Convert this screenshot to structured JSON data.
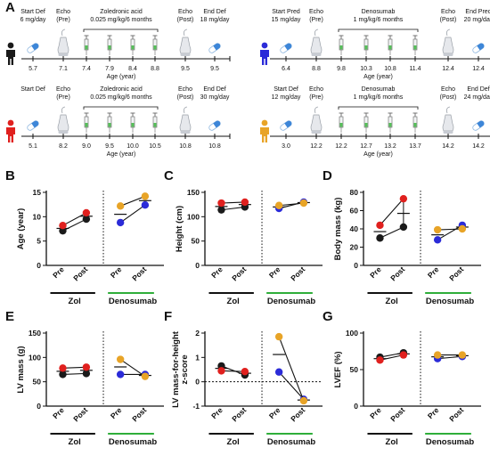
{
  "timelines": {
    "age_axis_label": "Age (year)",
    "patients": [
      {
        "color": "#1a1a1a",
        "events": [
          {
            "label": "Start Def",
            "sub": "6 mg/day",
            "age": "5.7",
            "icon": "pill-icon"
          },
          {
            "label": "Echo",
            "sub": "(Pre)",
            "age": "7.1",
            "icon": "echo-probe-icon"
          },
          {
            "label": "",
            "sub": "",
            "age": "7.4",
            "icon": "syringe-icon"
          },
          {
            "label": "",
            "sub": "",
            "age": "7.9",
            "icon": "syringe-icon"
          },
          {
            "label": "",
            "sub": "",
            "age": "8.4",
            "icon": "syringe-icon"
          },
          {
            "label": "",
            "sub": "",
            "age": "8.8",
            "icon": "syringe-icon"
          },
          {
            "label": "Echo",
            "sub": "(Post)",
            "age": "9.5",
            "icon": "echo-probe-icon"
          },
          {
            "label": "End Def",
            "sub": "18 mg/day",
            "age": "9.5",
            "icon": "pill-icon"
          }
        ],
        "treatment": "Zoledronic acid",
        "dose": "0.025 mg/kg/6 months"
      },
      {
        "color": "#2b2bd8",
        "events": [
          {
            "label": "Start Pred",
            "sub": "15 mg/day",
            "age": "6.4",
            "icon": "pill-icon"
          },
          {
            "label": "Echo",
            "sub": "(Pre)",
            "age": "8.8",
            "icon": "echo-probe-icon"
          },
          {
            "label": "",
            "sub": "",
            "age": "9.8",
            "icon": "syringe-icon"
          },
          {
            "label": "",
            "sub": "",
            "age": "10.3",
            "icon": "syringe-icon"
          },
          {
            "label": "",
            "sub": "",
            "age": "10.8",
            "icon": "syringe-icon"
          },
          {
            "label": "",
            "sub": "",
            "age": "11.4",
            "icon": "syringe-icon"
          },
          {
            "label": "Echo",
            "sub": "(Post)",
            "age": "12.4",
            "icon": "echo-probe-icon"
          },
          {
            "label": "End Pred",
            "sub": "20 mg/day",
            "age": "12.4",
            "icon": "pill-icon"
          }
        ],
        "treatment": "Denosumab",
        "dose": "1 mg/kg/6 months"
      },
      {
        "color": "#e0201e",
        "events": [
          {
            "label": "Start Def",
            "sub": "",
            "age": "5.1",
            "icon": "pill-icon"
          },
          {
            "label": "Echo",
            "sub": "(Pre)",
            "age": "8.2",
            "icon": "echo-probe-icon"
          },
          {
            "label": "",
            "sub": "",
            "age": "9.0",
            "icon": "syringe-icon"
          },
          {
            "label": "",
            "sub": "",
            "age": "9.5",
            "icon": "syringe-icon"
          },
          {
            "label": "",
            "sub": "",
            "age": "10.0",
            "icon": "syringe-icon"
          },
          {
            "label": "",
            "sub": "",
            "age": "10.5",
            "icon": "syringe-icon"
          },
          {
            "label": "Echo",
            "sub": "(Post)",
            "age": "10.8",
            "icon": "echo-probe-icon"
          },
          {
            "label": "End Def",
            "sub": "30 mg/day",
            "age": "10.8",
            "icon": "pill-icon"
          }
        ],
        "treatment": "Zoledronic acid",
        "dose": "0.025 mg/kg/6 months"
      },
      {
        "color": "#e8a427",
        "events": [
          {
            "label": "Start Def",
            "sub": "12 mg/day",
            "age": "3.0",
            "icon": "pill-icon"
          },
          {
            "label": "Echo",
            "sub": "(Pre)",
            "age": "12.2",
            "icon": "echo-probe-icon"
          },
          {
            "label": "",
            "sub": "",
            "age": "12.2",
            "icon": "syringe-icon"
          },
          {
            "label": "",
            "sub": "",
            "age": "12.7",
            "icon": "syringe-icon"
          },
          {
            "label": "",
            "sub": "",
            "age": "13.2",
            "icon": "syringe-icon"
          },
          {
            "label": "",
            "sub": "",
            "age": "13.7",
            "icon": "syringe-icon"
          },
          {
            "label": "Echo",
            "sub": "(Post)",
            "age": "14.2",
            "icon": "echo-probe-icon"
          },
          {
            "label": "End Def",
            "sub": "24 mg/day",
            "age": "14.2",
            "icon": "pill-icon"
          }
        ],
        "treatment": "Denosumab",
        "dose": "1 mg/kg/6 months"
      }
    ]
  },
  "colors": {
    "black": "#1a1a1a",
    "red": "#e0201e",
    "blue": "#2b2bd8",
    "orange": "#e8a427",
    "denosumab_underline": "#2fae3a"
  },
  "chart_data": [
    {
      "panel": "A",
      "type": "timeline"
    },
    {
      "panel": "B",
      "type": "scatter",
      "ylabel": "Age (year)",
      "ylim": [
        0,
        15
      ],
      "yticks": [
        0,
        5,
        10,
        15
      ],
      "x_tick_labels": [
        "Pre",
        "Post",
        "Pre",
        "Post"
      ],
      "groups": [
        "Zol",
        "Denosumab"
      ],
      "series": [
        {
          "color": "#1a1a1a",
          "group": 0,
          "values": [
            7.1,
            9.5
          ]
        },
        {
          "color": "#e0201e",
          "group": 0,
          "values": [
            8.2,
            10.8
          ]
        },
        {
          "color": "#2b2bd8",
          "group": 1,
          "values": [
            8.8,
            12.4
          ]
        },
        {
          "color": "#e8a427",
          "group": 1,
          "values": [
            12.2,
            14.2
          ]
        }
      ],
      "means": [
        [
          7.6,
          10.1
        ],
        [
          10.5,
          13.3
        ]
      ]
    },
    {
      "panel": "C",
      "type": "scatter",
      "ylabel": "Height (cm)",
      "ylim": [
        0,
        150
      ],
      "yticks": [
        0,
        50,
        100,
        150
      ],
      "x_tick_labels": [
        "Pre",
        "Post",
        "Pre",
        "Post"
      ],
      "groups": [
        "Zol",
        "Denosumab"
      ],
      "series": [
        {
          "color": "#1a1a1a",
          "group": 0,
          "values": [
            114,
            120
          ]
        },
        {
          "color": "#e0201e",
          "group": 0,
          "values": [
            128,
            130
          ]
        },
        {
          "color": "#2b2bd8",
          "group": 1,
          "values": [
            117,
            130
          ]
        },
        {
          "color": "#e8a427",
          "group": 1,
          "values": [
            123,
            128
          ]
        }
      ],
      "means": [
        [
          121,
          125
        ],
        [
          120,
          129
        ]
      ]
    },
    {
      "panel": "D",
      "type": "scatter",
      "ylabel": "Body mass (kg)",
      "ylim": [
        0,
        80
      ],
      "yticks": [
        0,
        20,
        40,
        60,
        80
      ],
      "x_tick_labels": [
        "Pre",
        "Post",
        "Pre",
        "Post"
      ],
      "groups": [
        "Zol",
        "Denosumab"
      ],
      "series": [
        {
          "color": "#1a1a1a",
          "group": 0,
          "values": [
            30,
            42
          ]
        },
        {
          "color": "#e0201e",
          "group": 0,
          "values": [
            44,
            73
          ]
        },
        {
          "color": "#2b2bd8",
          "group": 1,
          "values": [
            28,
            44
          ]
        },
        {
          "color": "#e8a427",
          "group": 1,
          "values": [
            39,
            40
          ]
        }
      ],
      "means": [
        [
          37,
          57
        ],
        [
          33.5,
          42
        ]
      ],
      "errorbars": [
        [
          null,
          [
            42,
            73
          ]
        ],
        [
          null,
          null
        ]
      ]
    },
    {
      "panel": "E",
      "type": "scatter",
      "ylabel": "LV mass (g)",
      "ylim": [
        0,
        150
      ],
      "yticks": [
        0,
        50,
        100,
        150
      ],
      "x_tick_labels": [
        "Pre",
        "Post",
        "Pre",
        "Post"
      ],
      "groups": [
        "Zol",
        "Denosumab"
      ],
      "series": [
        {
          "color": "#1a1a1a",
          "group": 0,
          "values": [
            65,
            67
          ]
        },
        {
          "color": "#e0201e",
          "group": 0,
          "values": [
            78,
            80
          ]
        },
        {
          "color": "#2b2bd8",
          "group": 1,
          "values": [
            65,
            65
          ]
        },
        {
          "color": "#e8a427",
          "group": 1,
          "values": [
            96,
            61
          ]
        }
      ],
      "means": [
        [
          71.5,
          73.5
        ],
        [
          80.5,
          63
        ]
      ]
    },
    {
      "panel": "F",
      "type": "scatter",
      "ylabel": "LV mass-for-height z-score",
      "ylim": [
        -1,
        2
      ],
      "yticks": [
        -1,
        0,
        1,
        2
      ],
      "zero_line": true,
      "x_tick_labels": [
        "Pre",
        "Post",
        "Pre",
        "Post"
      ],
      "groups": [
        "Zol",
        "Denosumab"
      ],
      "series": [
        {
          "color": "#1a1a1a",
          "group": 0,
          "values": [
            0.65,
            0.28
          ]
        },
        {
          "color": "#e0201e",
          "group": 0,
          "values": [
            0.45,
            0.42
          ]
        },
        {
          "color": "#2b2bd8",
          "group": 1,
          "values": [
            0.4,
            -0.72
          ]
        },
        {
          "color": "#e8a427",
          "group": 1,
          "values": [
            1.85,
            -0.78
          ]
        }
      ],
      "means": [
        [
          0.55,
          0.35
        ],
        [
          1.12,
          -0.75
        ]
      ]
    },
    {
      "panel": "G",
      "type": "scatter",
      "ylabel": "LVEF (%)",
      "ylim": [
        0,
        100
      ],
      "yticks": [
        0,
        50,
        100
      ],
      "x_tick_labels": [
        "Pre",
        "Post",
        "Pre",
        "Post"
      ],
      "groups": [
        "Zol",
        "Denosumab"
      ],
      "series": [
        {
          "color": "#1a1a1a",
          "group": 0,
          "values": [
            67,
            73
          ]
        },
        {
          "color": "#e0201e",
          "group": 0,
          "values": [
            63,
            70
          ]
        },
        {
          "color": "#2b2bd8",
          "group": 1,
          "values": [
            65,
            68
          ]
        },
        {
          "color": "#e8a427",
          "group": 1,
          "values": [
            70,
            70
          ]
        }
      ],
      "means": [
        [
          65,
          71.5
        ],
        [
          67.5,
          69
        ]
      ]
    }
  ]
}
